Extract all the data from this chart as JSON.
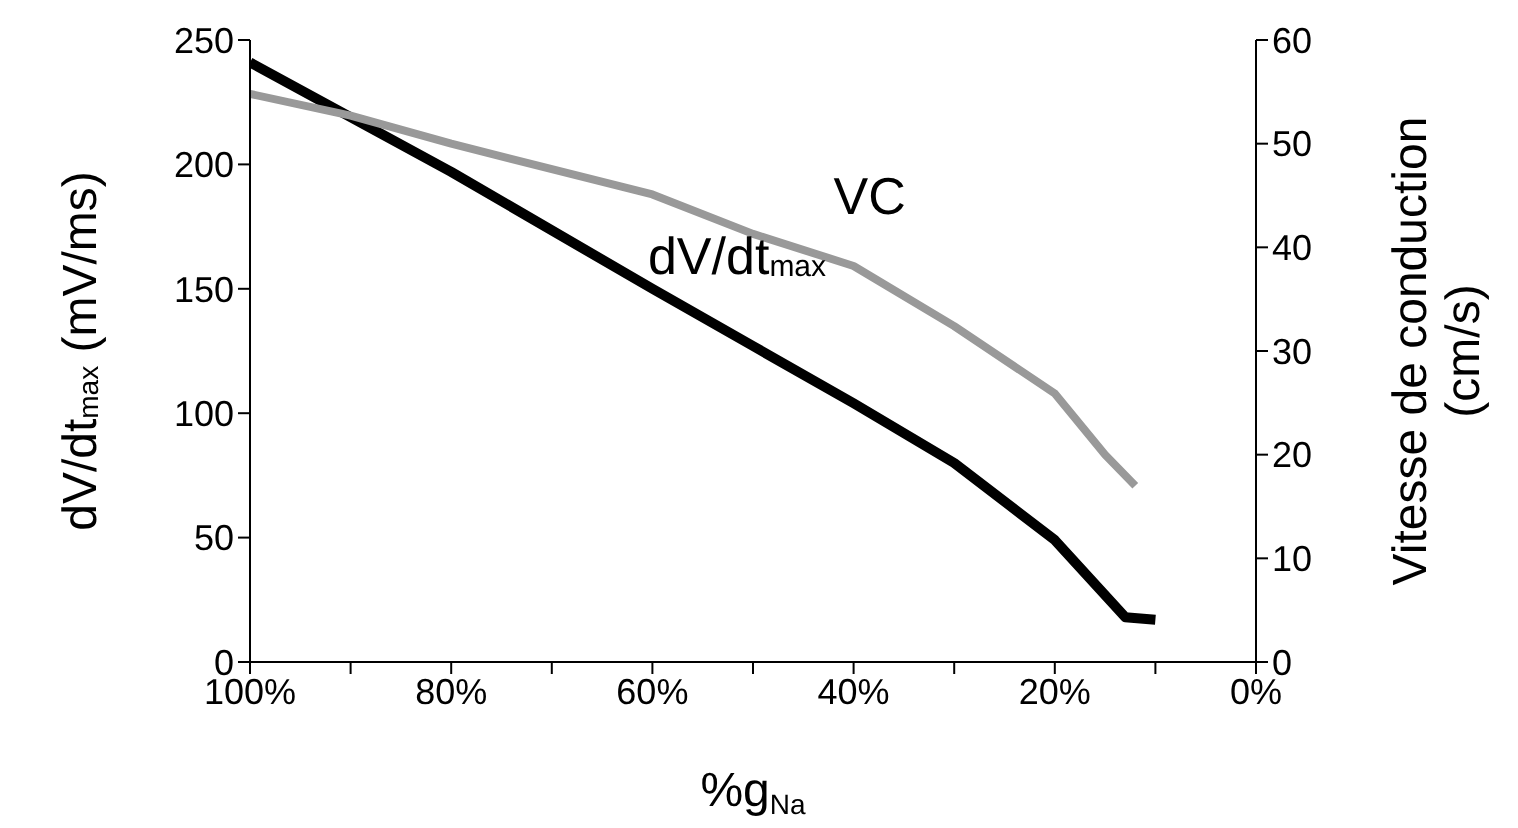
{
  "chart_data": {
    "type": "line",
    "xlabel": "%g$_{Na}$",
    "ylabel": "dV/dt$_{max}$ (mV/ms)",
    "y2label": "Vitesse de conduction (cm/s)",
    "xlim": [
      100,
      0
    ],
    "xticks": [
      {
        "value": 100,
        "label": "100%"
      },
      {
        "value": 90,
        "label": null
      },
      {
        "value": 80,
        "label": "80%"
      },
      {
        "value": 70,
        "label": null
      },
      {
        "value": 60,
        "label": "60%"
      },
      {
        "value": 50,
        "label": null
      },
      {
        "value": 40,
        "label": "40%"
      },
      {
        "value": 30,
        "label": null
      },
      {
        "value": 20,
        "label": "20%"
      },
      {
        "value": 10,
        "label": null
      },
      {
        "value": 0,
        "label": "0%"
      }
    ],
    "ylim": [
      0,
      250
    ],
    "yticks": [
      0,
      50,
      100,
      150,
      200,
      250
    ],
    "y2lim": [
      0,
      60
    ],
    "y2ticks": [
      0,
      10,
      20,
      30,
      40,
      50,
      60
    ],
    "marker": "none",
    "line_style": "solid",
    "series": [
      {
        "name": "dV/dt$_{max}$",
        "color": "#000000",
        "x": [
          100,
          80,
          60,
          50,
          40,
          30,
          20,
          13,
          10
        ],
        "values": [
          241,
          197,
          150,
          127,
          104,
          80,
          49,
          18,
          17
        ]
      },
      {
        "name": "VC",
        "color": "#999999",
        "axis": "y2",
        "x": [
          100,
          90,
          80,
          60,
          50,
          40,
          30,
          20,
          15,
          12
        ],
        "values": [
          54.8,
          52.7,
          50,
          45.1,
          41.3,
          38.2,
          32.4,
          25.9,
          20,
          17
        ]
      }
    ]
  }
}
